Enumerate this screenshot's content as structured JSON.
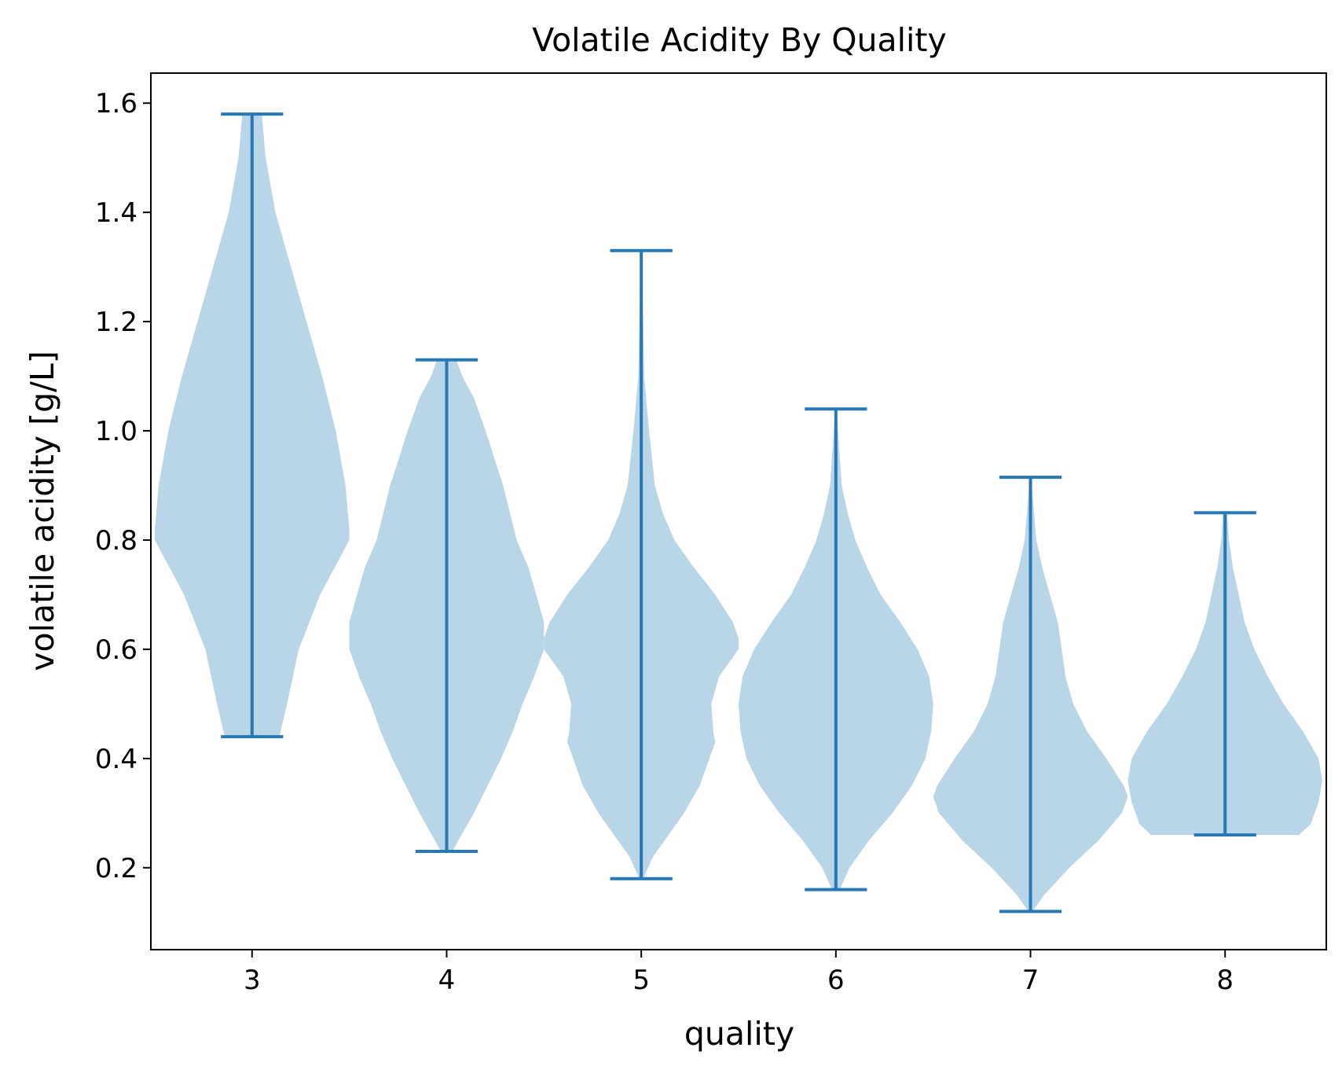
{
  "chart_data": {
    "type": "violin",
    "title": "Volatile Acidity By Quality",
    "xlabel": "quality",
    "ylabel": "volatile acidity [g/L]",
    "categories": [
      "3",
      "4",
      "5",
      "6",
      "7",
      "8"
    ],
    "xlim": [
      2.48,
      8.52
    ],
    "ylim": [
      0.05,
      1.655
    ],
    "yticks": [
      0.2,
      0.4,
      0.6,
      0.8,
      1.0,
      1.2,
      1.4,
      1.6
    ],
    "ytick_labels": [
      "0.2",
      "0.4",
      "0.6",
      "0.8",
      "1.0",
      "1.2",
      "1.4",
      "1.6"
    ],
    "grid": false,
    "legend": "none",
    "colors": {
      "body": "#b9d5e8",
      "lines": "#2878b5"
    },
    "violins": [
      {
        "category": "3",
        "min": 0.44,
        "max": 1.58,
        "profile": [
          [
            0.44,
            0.14
          ],
          [
            0.5,
            0.18
          ],
          [
            0.6,
            0.24
          ],
          [
            0.7,
            0.35
          ],
          [
            0.8,
            0.5
          ],
          [
            0.82,
            0.5
          ],
          [
            0.9,
            0.48
          ],
          [
            1.0,
            0.43
          ],
          [
            1.1,
            0.36
          ],
          [
            1.2,
            0.28
          ],
          [
            1.3,
            0.2
          ],
          [
            1.4,
            0.12
          ],
          [
            1.5,
            0.07
          ],
          [
            1.58,
            0.05
          ]
        ]
      },
      {
        "category": "4",
        "min": 0.23,
        "max": 1.13,
        "profile": [
          [
            0.23,
            0.03
          ],
          [
            0.25,
            0.06
          ],
          [
            0.3,
            0.14
          ],
          [
            0.35,
            0.21
          ],
          [
            0.4,
            0.28
          ],
          [
            0.45,
            0.34
          ],
          [
            0.5,
            0.39
          ],
          [
            0.55,
            0.45
          ],
          [
            0.6,
            0.5
          ],
          [
            0.65,
            0.5
          ],
          [
            0.7,
            0.46
          ],
          [
            0.75,
            0.42
          ],
          [
            0.8,
            0.36
          ],
          [
            0.9,
            0.29
          ],
          [
            1.0,
            0.2
          ],
          [
            1.06,
            0.14
          ],
          [
            1.1,
            0.08
          ],
          [
            1.13,
            0.05
          ]
        ]
      },
      {
        "category": "5",
        "min": 0.18,
        "max": 1.33,
        "profile": [
          [
            0.18,
            0.01
          ],
          [
            0.22,
            0.06
          ],
          [
            0.25,
            0.12
          ],
          [
            0.3,
            0.22
          ],
          [
            0.35,
            0.3
          ],
          [
            0.4,
            0.35
          ],
          [
            0.43,
            0.38
          ],
          [
            0.45,
            0.37
          ],
          [
            0.5,
            0.36
          ],
          [
            0.55,
            0.4
          ],
          [
            0.6,
            0.5
          ],
          [
            0.62,
            0.5
          ],
          [
            0.65,
            0.47
          ],
          [
            0.7,
            0.38
          ],
          [
            0.75,
            0.27
          ],
          [
            0.8,
            0.17
          ],
          [
            0.85,
            0.11
          ],
          [
            0.9,
            0.07
          ],
          [
            1.0,
            0.04
          ],
          [
            1.1,
            0.015
          ],
          [
            1.33,
            0.003
          ]
        ]
      },
      {
        "category": "6",
        "min": 0.16,
        "max": 1.04,
        "profile": [
          [
            0.16,
            0.02
          ],
          [
            0.2,
            0.07
          ],
          [
            0.25,
            0.17
          ],
          [
            0.3,
            0.29
          ],
          [
            0.35,
            0.39
          ],
          [
            0.4,
            0.46
          ],
          [
            0.45,
            0.49
          ],
          [
            0.5,
            0.5
          ],
          [
            0.55,
            0.48
          ],
          [
            0.6,
            0.42
          ],
          [
            0.65,
            0.33
          ],
          [
            0.7,
            0.23
          ],
          [
            0.75,
            0.16
          ],
          [
            0.8,
            0.1
          ],
          [
            0.85,
            0.06
          ],
          [
            0.9,
            0.03
          ],
          [
            1.04,
            0.003
          ]
        ]
      },
      {
        "category": "7",
        "min": 0.12,
        "max": 0.915,
        "profile": [
          [
            0.12,
            0.01
          ],
          [
            0.15,
            0.07
          ],
          [
            0.2,
            0.2
          ],
          [
            0.25,
            0.35
          ],
          [
            0.3,
            0.47
          ],
          [
            0.33,
            0.5
          ],
          [
            0.35,
            0.48
          ],
          [
            0.4,
            0.39
          ],
          [
            0.45,
            0.29
          ],
          [
            0.5,
            0.22
          ],
          [
            0.55,
            0.18
          ],
          [
            0.6,
            0.16
          ],
          [
            0.65,
            0.14
          ],
          [
            0.7,
            0.1
          ],
          [
            0.75,
            0.06
          ],
          [
            0.8,
            0.03
          ],
          [
            0.915,
            0.003
          ]
        ]
      },
      {
        "category": "8",
        "min": 0.26,
        "max": 0.85,
        "profile": [
          [
            0.26,
            0.38
          ],
          [
            0.28,
            0.44
          ],
          [
            0.32,
            0.48
          ],
          [
            0.36,
            0.5
          ],
          [
            0.4,
            0.48
          ],
          [
            0.45,
            0.4
          ],
          [
            0.5,
            0.3
          ],
          [
            0.55,
            0.22
          ],
          [
            0.6,
            0.15
          ],
          [
            0.65,
            0.1
          ],
          [
            0.7,
            0.07
          ],
          [
            0.75,
            0.04
          ],
          [
            0.8,
            0.02
          ],
          [
            0.85,
            0.01
          ]
        ]
      }
    ]
  }
}
